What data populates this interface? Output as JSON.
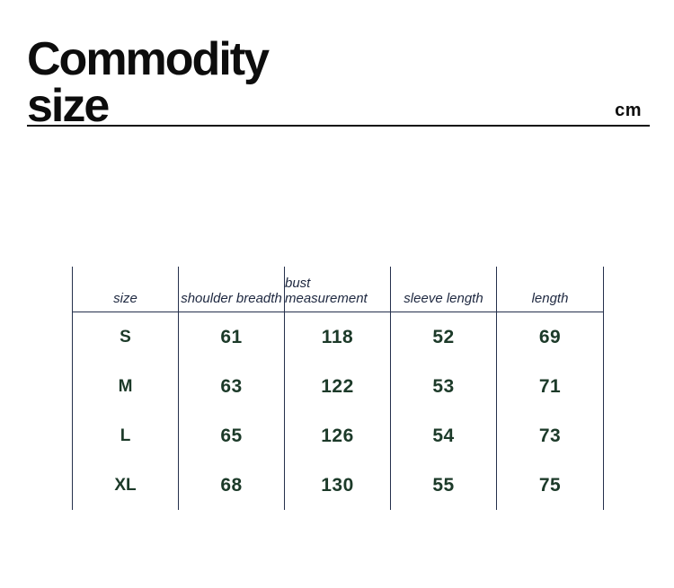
{
  "colors": {
    "ink": "#0d0d0d",
    "line": "#25304c",
    "header-text": "#1e2840",
    "data-text": "#1c3a29",
    "bg": "#ffffff"
  },
  "header": {
    "title_line1": "Commodity",
    "title_line2": "size",
    "unit": "cm"
  },
  "table": {
    "columns": [
      "size",
      "shoulder breadth",
      "bust measurement",
      "sleeve length",
      "length"
    ],
    "rows": [
      {
        "size": "S",
        "values": [
          "61",
          "118",
          "52",
          "69"
        ]
      },
      {
        "size": "M",
        "values": [
          "63",
          "122",
          "53",
          "71"
        ]
      },
      {
        "size": "L",
        "values": [
          "65",
          "126",
          "54",
          "73"
        ]
      },
      {
        "size": "XL",
        "values": [
          "68",
          "130",
          "55",
          "75"
        ]
      }
    ]
  }
}
